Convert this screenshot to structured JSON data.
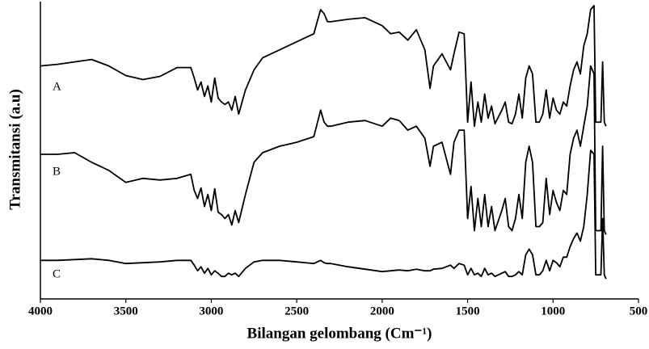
{
  "chart_data": {
    "type": "line",
    "xlabel": "Bilangan gelombang (Cm⁻¹)",
    "ylabel": "Transmitansi (a.u)",
    "xlim": [
      4000,
      500
    ],
    "xticks": [
      4000,
      3500,
      3000,
      2500,
      2000,
      1500,
      1000,
      500
    ],
    "ylim": [
      0,
      370
    ],
    "x": [
      4000,
      3900,
      3800,
      3700,
      3600,
      3500,
      3400,
      3300,
      3200,
      3120,
      3100,
      3080,
      3060,
      3040,
      3020,
      3000,
      2980,
      2960,
      2940,
      2920,
      2900,
      2880,
      2860,
      2840,
      2800,
      2750,
      2700,
      2600,
      2500,
      2400,
      2360,
      2340,
      2320,
      2300,
      2200,
      2100,
      2000,
      1950,
      1900,
      1850,
      1800,
      1750,
      1720,
      1700,
      1650,
      1600,
      1580,
      1550,
      1520,
      1500,
      1480,
      1460,
      1440,
      1420,
      1400,
      1380,
      1360,
      1340,
      1300,
      1280,
      1260,
      1240,
      1220,
      1200,
      1180,
      1160,
      1140,
      1120,
      1100,
      1080,
      1060,
      1040,
      1020,
      1000,
      980,
      960,
      940,
      920,
      900,
      880,
      860,
      840,
      820,
      800,
      780,
      760,
      750,
      740,
      720,
      710,
      700,
      690
    ],
    "series": [
      {
        "name": "A",
        "color": "#000000",
        "values": [
          290,
          292,
          295,
          298,
          290,
          278,
          273,
          277,
          288,
          288,
          275,
          260,
          270,
          252,
          265,
          245,
          275,
          250,
          245,
          242,
          245,
          235,
          252,
          230,
          260,
          285,
          300,
          310,
          320,
          330,
          360,
          355,
          345,
          345,
          348,
          350,
          340,
          330,
          332,
          322,
          335,
          310,
          262,
          290,
          305,
          285,
          305,
          332,
          330,
          220,
          270,
          215,
          245,
          220,
          255,
          225,
          240,
          218,
          235,
          245,
          220,
          218,
          230,
          255,
          225,
          275,
          290,
          280,
          220,
          220,
          230,
          260,
          225,
          250,
          235,
          230,
          245,
          240,
          265,
          285,
          295,
          280,
          315,
          330,
          360,
          365,
          220,
          220,
          220,
          295,
          220,
          215
        ]
      },
      {
        "name": "B",
        "color": "#000000",
        "values": [
          180,
          180,
          182,
          170,
          160,
          145,
          150,
          148,
          150,
          155,
          135,
          125,
          138,
          115,
          130,
          110,
          137,
          108,
          105,
          100,
          105,
          92,
          110,
          95,
          130,
          170,
          182,
          190,
          195,
          202,
          235,
          220,
          215,
          215,
          220,
          222,
          215,
          225,
          222,
          210,
          215,
          200,
          165,
          190,
          195,
          155,
          195,
          210,
          210,
          100,
          140,
          85,
          125,
          90,
          130,
          90,
          115,
          85,
          110,
          125,
          90,
          85,
          100,
          130,
          100,
          170,
          190,
          170,
          90,
          90,
          95,
          150,
          105,
          135,
          120,
          110,
          135,
          130,
          180,
          200,
          210,
          190,
          215,
          240,
          290,
          280,
          85,
          85,
          85,
          190,
          85,
          80
        ]
      },
      {
        "name": "C",
        "color": "#000000",
        "values": [
          48,
          48,
          49,
          50,
          48,
          44,
          45,
          46,
          48,
          48,
          42,
          35,
          40,
          32,
          38,
          30,
          35,
          32,
          28,
          28,
          32,
          30,
          32,
          28,
          38,
          46,
          48,
          48,
          46,
          44,
          48,
          45,
          44,
          44,
          40,
          37,
          34,
          35,
          36,
          35,
          37,
          35,
          35,
          37,
          38,
          42,
          38,
          44,
          42,
          30,
          38,
          30,
          32,
          28,
          38,
          30,
          32,
          28,
          32,
          34,
          28,
          28,
          30,
          34,
          30,
          55,
          62,
          55,
          30,
          30,
          35,
          48,
          35,
          48,
          45,
          40,
          52,
          52,
          65,
          75,
          82,
          72,
          90,
          130,
          185,
          180,
          30,
          30,
          30,
          100,
          30,
          25
        ]
      }
    ]
  }
}
